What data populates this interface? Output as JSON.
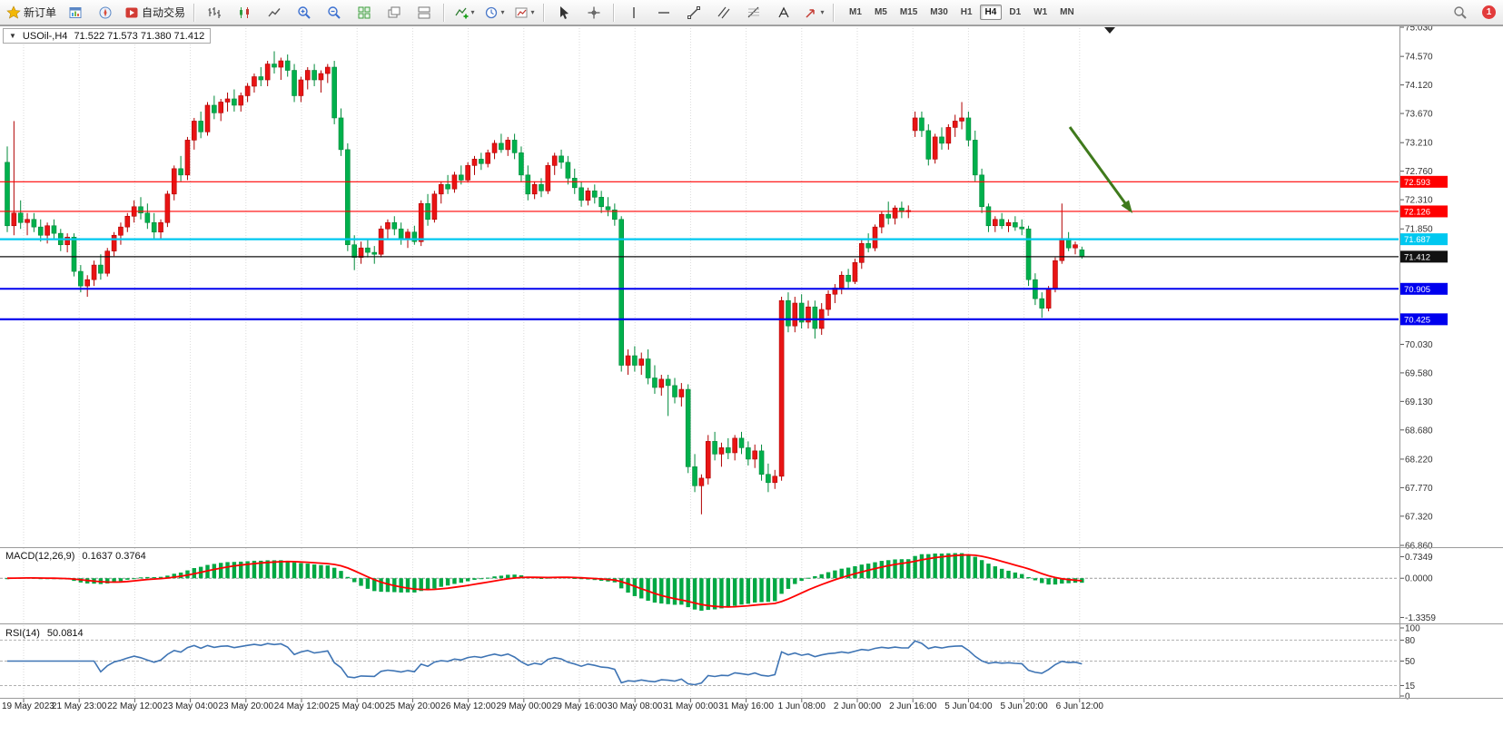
{
  "toolbar": {
    "new_order_label": "新订单",
    "autotrading_label": "自动交易",
    "timeframes": [
      "M1",
      "M5",
      "M15",
      "M30",
      "H1",
      "H4",
      "D1",
      "W1",
      "MN"
    ],
    "active_timeframe": "H4",
    "notification_count": "1"
  },
  "chart_data": {
    "type": "candlestick",
    "symbol_label": "USOil-,H4",
    "ohlc_label": "71.522 71.573 71.380 71.412",
    "colors": {
      "bull_body": "#e81414",
      "bull_border": "#b00000",
      "bear_body": "#00b04c",
      "bear_border": "#008a3a",
      "grid": "#dadada",
      "macd_hist": "#00a843",
      "macd_signal": "#ff0000",
      "rsi_line": "#3e74b4"
    },
    "price_axis": [
      "75.030",
      "74.570",
      "74.120",
      "73.670",
      "73.210",
      "72.760",
      "72.310",
      "71.850",
      "70.030",
      "69.580",
      "69.130",
      "68.680",
      "68.220",
      "67.770",
      "67.320",
      "66.860"
    ],
    "time_axis": [
      "19 May 2023",
      "21 May 23:00",
      "22 May 12:00",
      "23 May 04:00",
      "23 May 20:00",
      "24 May 12:00",
      "25 May 04:00",
      "25 May 20:00",
      "26 May 12:00",
      "29 May 00:00",
      "29 May 16:00",
      "30 May 08:00",
      "31 May 00:00",
      "31 May 16:00",
      "1 Jun 08:00",
      "2 Jun 00:00",
      "2 Jun 16:00",
      "5 Jun 04:00",
      "5 Jun 20:00",
      "6 Jun 12:00"
    ],
    "hlines": [
      {
        "price": 72.593,
        "label": "72.593",
        "color": "#ff0000",
        "width": 1.2
      },
      {
        "price": 72.126,
        "label": "72.126",
        "color": "#ff0000",
        "width": 1.2
      },
      {
        "price": 71.687,
        "label": "71.687",
        "color": "#00c8f0",
        "width": 2.2
      },
      {
        "price": 71.412,
        "label": "71.412",
        "color": "#111111",
        "width": 1.2
      },
      {
        "price": 70.905,
        "label": "70.905",
        "color": "#0000ee",
        "width": 2
      },
      {
        "price": 70.425,
        "label": "70.425",
        "color": "#0000ee",
        "width": 2.2
      }
    ],
    "annotation_arrow": {
      "color": "#3f7a1c"
    },
    "macd": {
      "label": "MACD(12,26,9)",
      "value_label": "0.1637 0.3764",
      "axis": [
        "0.7349",
        "0.0000",
        "-1.3359"
      ],
      "fast": 12,
      "slow": 26,
      "signal": 9
    },
    "rsi": {
      "label": "RSI(14)",
      "value_label": "50.0814",
      "axis": [
        "100",
        "80",
        "50",
        "15",
        "0"
      ],
      "levels": [
        80,
        50,
        15
      ]
    },
    "candles": [
      [
        72.9,
        73.15,
        71.8,
        71.9
      ],
      [
        71.9,
        73.55,
        71.75,
        72.1
      ],
      [
        72.1,
        72.3,
        71.85,
        71.95
      ],
      [
        71.95,
        72.1,
        71.75,
        72.0
      ],
      [
        72.0,
        72.1,
        71.8,
        71.88
      ],
      [
        71.88,
        72.0,
        71.65,
        71.75
      ],
      [
        71.75,
        71.95,
        71.62,
        71.9
      ],
      [
        71.9,
        72.0,
        71.7,
        71.78
      ],
      [
        71.78,
        71.85,
        71.5,
        71.6
      ],
      [
        71.6,
        71.78,
        71.48,
        71.72
      ],
      [
        71.72,
        71.78,
        71.1,
        71.18
      ],
      [
        71.18,
        71.28,
        70.85,
        70.95
      ],
      [
        70.95,
        71.12,
        70.78,
        71.05
      ],
      [
        71.05,
        71.35,
        70.95,
        71.28
      ],
      [
        71.28,
        71.45,
        71.05,
        71.15
      ],
      [
        71.15,
        71.55,
        71.1,
        71.5
      ],
      [
        71.5,
        71.8,
        71.42,
        71.75
      ],
      [
        71.75,
        71.95,
        71.6,
        71.88
      ],
      [
        71.88,
        72.1,
        71.8,
        72.05
      ],
      [
        72.05,
        72.3,
        71.95,
        72.2
      ],
      [
        72.2,
        72.35,
        72.0,
        72.1
      ],
      [
        72.1,
        72.25,
        71.85,
        71.95
      ],
      [
        71.95,
        72.1,
        71.7,
        71.8
      ],
      [
        71.8,
        72.0,
        71.7,
        71.95
      ],
      [
        71.95,
        72.45,
        71.88,
        72.4
      ],
      [
        72.4,
        72.85,
        72.3,
        72.8
      ],
      [
        72.8,
        73.0,
        72.6,
        72.7
      ],
      [
        72.7,
        73.3,
        72.62,
        73.25
      ],
      [
        73.25,
        73.6,
        73.1,
        73.55
      ],
      [
        73.55,
        73.7,
        73.28,
        73.38
      ],
      [
        73.38,
        73.85,
        73.32,
        73.8
      ],
      [
        73.8,
        73.95,
        73.58,
        73.68
      ],
      [
        73.68,
        73.9,
        73.55,
        73.85
      ],
      [
        73.85,
        74.0,
        73.7,
        73.9
      ],
      [
        73.9,
        74.05,
        73.7,
        73.8
      ],
      [
        73.8,
        74.0,
        73.7,
        73.95
      ],
      [
        73.95,
        74.15,
        73.85,
        74.1
      ],
      [
        74.1,
        74.3,
        74.0,
        74.25
      ],
      [
        74.25,
        74.4,
        74.1,
        74.2
      ],
      [
        74.2,
        74.5,
        74.1,
        74.45
      ],
      [
        74.45,
        74.65,
        74.3,
        74.4
      ],
      [
        74.4,
        74.55,
        74.2,
        74.5
      ],
      [
        74.5,
        74.6,
        74.25,
        74.35
      ],
      [
        74.35,
        74.45,
        73.85,
        73.95
      ],
      [
        73.95,
        74.25,
        73.85,
        74.2
      ],
      [
        74.2,
        74.4,
        74.05,
        74.35
      ],
      [
        74.35,
        74.45,
        74.1,
        74.2
      ],
      [
        74.2,
        74.35,
        74.0,
        74.3
      ],
      [
        74.3,
        74.45,
        74.15,
        74.4
      ],
      [
        74.4,
        74.5,
        73.5,
        73.6
      ],
      [
        73.6,
        73.75,
        73.0,
        73.1
      ],
      [
        73.1,
        73.2,
        71.5,
        71.6
      ],
      [
        71.6,
        71.75,
        71.2,
        71.4
      ],
      [
        71.4,
        71.65,
        71.3,
        71.55
      ],
      [
        71.55,
        71.7,
        71.4,
        71.48
      ],
      [
        71.48,
        71.58,
        71.3,
        71.45
      ],
      [
        71.45,
        71.9,
        71.4,
        71.85
      ],
      [
        71.85,
        72.0,
        71.7,
        71.95
      ],
      [
        71.95,
        72.05,
        71.75,
        71.85
      ],
      [
        71.85,
        71.95,
        71.6,
        71.7
      ],
      [
        71.7,
        71.85,
        71.55,
        71.8
      ],
      [
        71.8,
        71.9,
        71.6,
        71.65
      ],
      [
        71.65,
        72.3,
        71.58,
        72.25
      ],
      [
        72.25,
        72.4,
        71.9,
        72.0
      ],
      [
        72.0,
        72.45,
        71.95,
        72.4
      ],
      [
        72.4,
        72.6,
        72.25,
        72.55
      ],
      [
        72.55,
        72.7,
        72.4,
        72.48
      ],
      [
        72.48,
        72.75,
        72.42,
        72.7
      ],
      [
        72.7,
        72.85,
        72.55,
        72.62
      ],
      [
        72.62,
        72.9,
        72.58,
        72.85
      ],
      [
        72.85,
        73.0,
        72.7,
        72.95
      ],
      [
        72.95,
        73.05,
        72.78,
        72.88
      ],
      [
        72.88,
        73.1,
        72.82,
        73.05
      ],
      [
        73.05,
        73.25,
        72.95,
        73.2
      ],
      [
        73.2,
        73.35,
        73.05,
        73.1
      ],
      [
        73.1,
        73.3,
        73.0,
        73.25
      ],
      [
        73.25,
        73.35,
        72.95,
        73.05
      ],
      [
        73.05,
        73.15,
        72.6,
        72.7
      ],
      [
        72.7,
        72.85,
        72.3,
        72.4
      ],
      [
        72.4,
        72.6,
        72.32,
        72.55
      ],
      [
        72.55,
        72.65,
        72.35,
        72.45
      ],
      [
        72.45,
        72.9,
        72.4,
        72.85
      ],
      [
        72.85,
        73.05,
        72.7,
        73.0
      ],
      [
        73.0,
        73.1,
        72.8,
        72.9
      ],
      [
        72.9,
        73.0,
        72.55,
        72.65
      ],
      [
        72.65,
        72.8,
        72.4,
        72.5
      ],
      [
        72.5,
        72.6,
        72.2,
        72.3
      ],
      [
        72.3,
        72.5,
        72.22,
        72.45
      ],
      [
        72.45,
        72.55,
        72.25,
        72.35
      ],
      [
        72.35,
        72.45,
        72.1,
        72.2
      ],
      [
        72.2,
        72.35,
        72.05,
        72.15
      ],
      [
        72.15,
        72.25,
        71.9,
        72.0
      ],
      [
        72.0,
        72.05,
        69.6,
        69.7
      ],
      [
        69.7,
        69.95,
        69.55,
        69.85
      ],
      [
        69.85,
        70.0,
        69.6,
        69.7
      ],
      [
        69.7,
        69.9,
        69.55,
        69.8
      ],
      [
        69.8,
        69.95,
        69.4,
        69.5
      ],
      [
        69.5,
        69.7,
        69.25,
        69.35
      ],
      [
        69.35,
        69.55,
        69.22,
        69.48
      ],
      [
        69.48,
        69.55,
        68.9,
        69.38
      ],
      [
        69.38,
        69.5,
        69.1,
        69.2
      ],
      [
        69.2,
        69.42,
        69.05,
        69.32
      ],
      [
        69.32,
        69.4,
        68.0,
        68.1
      ],
      [
        68.1,
        68.3,
        67.7,
        67.8
      ],
      [
        67.8,
        67.98,
        67.35,
        67.92
      ],
      [
        67.92,
        68.6,
        67.82,
        68.5
      ],
      [
        68.5,
        68.65,
        68.2,
        68.3
      ],
      [
        68.3,
        68.48,
        68.1,
        68.4
      ],
      [
        68.4,
        68.55,
        68.22,
        68.32
      ],
      [
        68.32,
        68.6,
        68.2,
        68.55
      ],
      [
        68.55,
        68.65,
        68.3,
        68.4
      ],
      [
        68.4,
        68.5,
        68.12,
        68.22
      ],
      [
        68.22,
        68.45,
        68.08,
        68.35
      ],
      [
        68.35,
        68.45,
        67.88,
        67.98
      ],
      [
        67.98,
        68.15,
        67.7,
        67.85
      ],
      [
        67.85,
        68.05,
        67.75,
        67.95
      ],
      [
        67.95,
        70.78,
        67.88,
        70.72
      ],
      [
        70.72,
        70.85,
        70.22,
        70.32
      ],
      [
        70.32,
        70.78,
        70.22,
        70.68
      ],
      [
        70.68,
        70.82,
        70.28,
        70.38
      ],
      [
        70.38,
        70.72,
        70.28,
        70.62
      ],
      [
        70.62,
        70.72,
        70.12,
        70.28
      ],
      [
        70.28,
        70.68,
        70.18,
        70.58
      ],
      [
        70.58,
        70.88,
        70.48,
        70.82
      ],
      [
        70.82,
        70.98,
        70.68,
        70.92
      ],
      [
        70.92,
        71.18,
        70.82,
        71.12
      ],
      [
        71.12,
        71.22,
        70.92,
        71.02
      ],
      [
        71.02,
        71.38,
        70.98,
        71.32
      ],
      [
        71.32,
        71.68,
        71.22,
        71.62
      ],
      [
        71.62,
        71.78,
        71.48,
        71.55
      ],
      [
        71.55,
        71.92,
        71.5,
        71.88
      ],
      [
        71.88,
        72.12,
        71.78,
        72.08
      ],
      [
        72.08,
        72.28,
        71.92,
        72.02
      ],
      [
        72.02,
        72.22,
        71.92,
        72.18
      ],
      [
        72.18,
        72.28,
        72.02,
        72.12
      ],
      [
        72.12,
        72.22,
        72.02,
        72.14
      ],
      [
        73.4,
        73.7,
        73.3,
        73.6
      ],
      [
        73.6,
        73.7,
        73.3,
        73.4
      ],
      [
        73.4,
        73.5,
        72.85,
        72.95
      ],
      [
        72.95,
        73.35,
        72.88,
        73.3
      ],
      [
        73.3,
        73.45,
        73.1,
        73.2
      ],
      [
        73.2,
        73.5,
        73.1,
        73.45
      ],
      [
        73.45,
        73.65,
        73.3,
        73.55
      ],
      [
        73.55,
        73.85,
        73.42,
        73.6
      ],
      [
        73.6,
        73.7,
        73.15,
        73.25
      ],
      [
        73.25,
        73.4,
        72.6,
        72.7
      ],
      [
        72.7,
        72.8,
        72.1,
        72.2
      ],
      [
        72.2,
        72.25,
        71.8,
        71.9
      ],
      [
        71.9,
        72.05,
        71.8,
        72.0
      ],
      [
        72.0,
        72.1,
        71.85,
        71.9
      ],
      [
        71.9,
        72.0,
        71.8,
        71.95
      ],
      [
        71.95,
        72.05,
        71.82,
        71.88
      ],
      [
        71.88,
        72.0,
        71.75,
        71.85
      ],
      [
        71.85,
        71.9,
        70.95,
        71.05
      ],
      [
        71.05,
        71.15,
        70.65,
        70.75
      ],
      [
        70.75,
        70.85,
        70.45,
        70.6
      ],
      [
        70.6,
        70.95,
        70.55,
        70.9
      ],
      [
        70.9,
        71.4,
        70.85,
        71.35
      ],
      [
        71.35,
        72.25,
        71.3,
        71.7
      ],
      [
        71.7,
        71.8,
        71.5,
        71.55
      ],
      [
        71.55,
        71.65,
        71.45,
        71.6
      ],
      [
        71.52,
        71.57,
        71.38,
        71.41
      ]
    ]
  }
}
